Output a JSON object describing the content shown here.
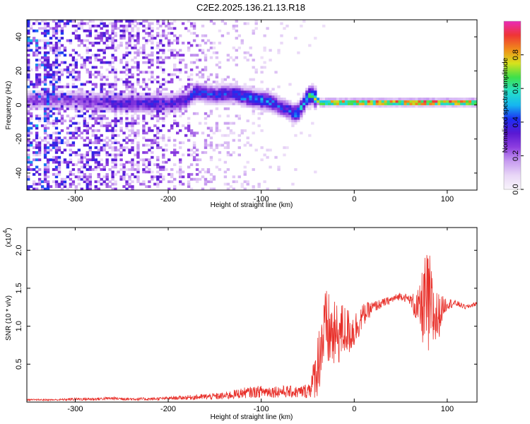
{
  "title": "C2E2.2025.136.21.13.R18",
  "colors": {
    "background": "#ffffff",
    "axis": "#000000",
    "snr_line": "#e8302a",
    "colormap": [
      "#f8f4fb",
      "#e9d7f7",
      "#c79cf0",
      "#8e3ee0",
      "#5a19d3",
      "#1d2df2",
      "#15b6f0",
      "#26e0c8",
      "#3ee04a",
      "#d7e21c",
      "#f08a1a",
      "#ef3535",
      "#ea2ab8"
    ]
  },
  "chart_data": [
    {
      "type": "heatmap",
      "xlabel": "Height of straight line (km)",
      "ylabel": "Frequency (Hz)",
      "xlim": [
        -352,
        132
      ],
      "ylim": [
        -50,
        50
      ],
      "xticks": [
        -300,
        -200,
        -100,
        0,
        100
      ],
      "xtick_labels": [
        "-300",
        "-200",
        "-100",
        "0",
        "100"
      ],
      "yticks": [
        -40,
        -20,
        0,
        20,
        40
      ],
      "ytick_labels": [
        "-40",
        "-20",
        "0",
        "20",
        "40"
      ],
      "colorbar": {
        "label": "Normalized spectral amplitude",
        "range": [
          0,
          1
        ],
        "ticks": [
          0.0,
          0.2,
          0.4,
          0.6,
          0.8
        ],
        "tick_labels": [
          "0.0",
          "0.2",
          "0.4",
          "0.6",
          "0.8"
        ]
      },
      "peak_track": {
        "x": [
          -300,
          -280,
          -260,
          -240,
          -220,
          -200,
          -180,
          -170,
          -150,
          -130,
          -120,
          -100,
          -90,
          -80,
          -70,
          -65,
          -60,
          -55,
          -50,
          -45,
          -40,
          -35,
          -30,
          -20,
          0,
          20,
          50,
          80,
          100,
          130
        ],
        "y": [
          3,
          2,
          1.5,
          1,
          1,
          1,
          3,
          8,
          6,
          7,
          5,
          3,
          2,
          -1,
          -3,
          -5,
          -4,
          0,
          5,
          6,
          3,
          1,
          1.5,
          1.5,
          1.5,
          1.5,
          1.5,
          1.5,
          1.5,
          1.5
        ],
        "amplitude": [
          0.25,
          0.3,
          0.3,
          0.35,
          0.35,
          0.35,
          0.35,
          0.4,
          0.4,
          0.4,
          0.45,
          0.45,
          0.45,
          0.4,
          0.4,
          0.45,
          0.5,
          0.5,
          0.55,
          0.6,
          0.7,
          0.8,
          0.85,
          0.9,
          0.92,
          0.92,
          0.93,
          0.95,
          0.95,
          0.95
        ]
      },
      "noise_level": {
        "x": [
          -350,
          -300,
          -250,
          -200,
          -150,
          -100,
          -60,
          -40,
          0,
          132
        ],
        "amplitude": [
          0.3,
          0.22,
          0.2,
          0.18,
          0.08,
          0.05,
          0.03,
          0.01,
          0.0,
          0.0
        ]
      }
    },
    {
      "type": "line",
      "xlabel": "Height of straight line (km)",
      "ylabel": "SNR (10 * v/v)",
      "scale_label": "(x10",
      "scale_exponent": "4",
      "xlim": [
        -352,
        132
      ],
      "ylim": [
        0,
        2.3
      ],
      "xticks": [
        -300,
        -200,
        -100,
        0,
        100
      ],
      "xtick_labels": [
        "-300",
        "-200",
        "-100",
        "0",
        "100"
      ],
      "yticks": [
        0.5,
        1.0,
        1.5,
        2.0
      ],
      "ytick_labels": [
        "0.5",
        "1.0",
        "1.5",
        "2.0"
      ],
      "series": [
        {
          "x": [
            -350,
            -320,
            -300,
            -280,
            -260,
            -240,
            -220,
            -200,
            -180,
            -160,
            -140,
            -120,
            -100,
            -80,
            -60,
            -50,
            -45,
            -40,
            -35,
            -30,
            -25,
            -20,
            -15,
            -10,
            -5,
            0,
            10,
            20,
            30,
            40,
            50,
            60,
            70,
            75,
            80,
            85,
            90,
            95,
            100,
            110,
            120,
            132
          ],
          "y": [
            0.03,
            0.03,
            0.04,
            0.04,
            0.05,
            0.04,
            0.04,
            0.05,
            0.06,
            0.07,
            0.08,
            0.12,
            0.14,
            0.14,
            0.13,
            0.15,
            0.25,
            0.45,
            0.8,
            0.95,
            0.9,
            0.85,
            0.92,
            0.95,
            0.92,
            0.95,
            1.15,
            1.25,
            1.3,
            1.35,
            1.4,
            1.35,
            1.2,
            1.3,
            1.25,
            1.15,
            1.1,
            1.25,
            1.3,
            1.3,
            1.25,
            1.3
          ],
          "noise_amplitude": [
            0.01,
            0.01,
            0.02,
            0.02,
            0.02,
            0.02,
            0.02,
            0.02,
            0.03,
            0.04,
            0.05,
            0.07,
            0.08,
            0.08,
            0.08,
            0.1,
            0.2,
            0.4,
            0.55,
            0.55,
            0.5,
            0.45,
            0.4,
            0.35,
            0.3,
            0.25,
            0.15,
            0.08,
            0.06,
            0.05,
            0.05,
            0.06,
            0.3,
            0.6,
            0.8,
            0.5,
            0.35,
            0.15,
            0.08,
            0.04,
            0.03,
            0.03
          ]
        }
      ]
    }
  ]
}
